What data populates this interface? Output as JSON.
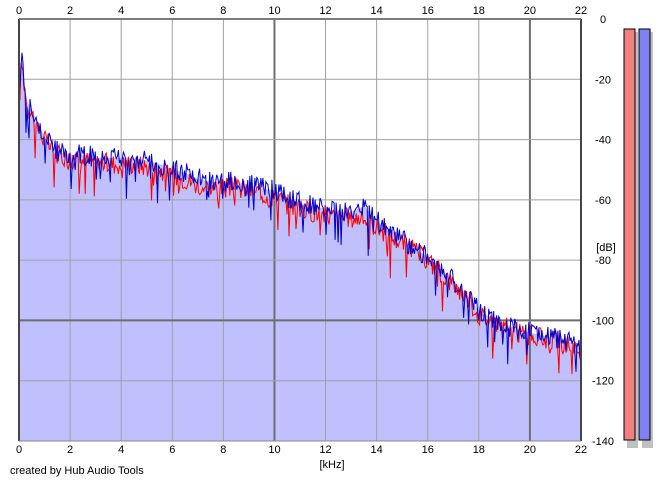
{
  "credit": "created by Hub Audio Tools",
  "colors": {
    "fill": "#c0c0ff",
    "red": "#ff0000",
    "blue": "#0000cc",
    "grid": "#a0a0a0",
    "grid_major": "#6e6e6e",
    "meter_left": "#f08080",
    "meter_right": "#8080f0"
  },
  "chart_data": {
    "type": "area",
    "xlabel": "[kHz]",
    "ylabel": "[dB]",
    "xlim": [
      0,
      22
    ],
    "ylim": [
      -140,
      0
    ],
    "x_ticks": [
      0,
      2,
      4,
      6,
      8,
      10,
      12,
      14,
      16,
      18,
      20,
      22
    ],
    "y_ticks": [
      0,
      -20,
      -40,
      -60,
      -80,
      -100,
      -120,
      -140
    ],
    "grid": true,
    "series": [
      {
        "color": "#ff0000",
        "x": [
          0,
          0.1,
          0.3,
          0.6,
          1,
          1.5,
          2,
          2.5,
          3,
          3.5,
          4,
          4.5,
          5,
          5.5,
          6,
          6.5,
          7,
          7.5,
          8,
          8.5,
          9,
          9.5,
          10,
          10.5,
          11,
          11.5,
          12,
          12.5,
          13,
          13.5,
          14,
          14.5,
          15,
          15.5,
          16,
          16.5,
          17,
          17.5,
          18,
          18.5,
          19,
          19.5,
          20,
          20.5,
          21,
          21.5,
          22
        ],
        "y": [
          -30,
          -14,
          -28,
          -33,
          -40,
          -45,
          -46,
          -47,
          -47,
          -48,
          -48,
          -48,
          -49,
          -50,
          -52,
          -53,
          -55,
          -56,
          -56,
          -56,
          -57,
          -58,
          -59,
          -61,
          -63,
          -64,
          -65,
          -66,
          -66,
          -66,
          -69,
          -72,
          -74,
          -77,
          -80,
          -84,
          -88,
          -92,
          -98,
          -100,
          -102,
          -104,
          -105,
          -106,
          -107,
          -108,
          -110
        ]
      },
      {
        "color": "#0000cc",
        "x": [
          0,
          0.1,
          0.3,
          0.6,
          1,
          1.5,
          2,
          2.5,
          3,
          3.5,
          4,
          4.5,
          5,
          5.5,
          6,
          6.5,
          7,
          7.5,
          8,
          8.5,
          9,
          9.5,
          10,
          10.5,
          11,
          11.5,
          12,
          12.5,
          13,
          13.5,
          14,
          14.5,
          15,
          15.5,
          16,
          16.5,
          17,
          17.5,
          18,
          18.5,
          19,
          19.5,
          20,
          20.5,
          21,
          21.5,
          22
        ],
        "y": [
          -28,
          -12,
          -27,
          -32,
          -39,
          -44,
          -45,
          -45,
          -46,
          -46,
          -46,
          -46,
          -47,
          -48,
          -50,
          -51,
          -53,
          -54,
          -54,
          -54,
          -55,
          -56,
          -57,
          -59,
          -61,
          -62,
          -63,
          -64,
          -64,
          -62,
          -67,
          -70,
          -73,
          -76,
          -79,
          -83,
          -87,
          -91,
          -97,
          -99,
          -101,
          -103,
          -104,
          -105,
          -106,
          -107,
          -109
        ]
      }
    ]
  }
}
